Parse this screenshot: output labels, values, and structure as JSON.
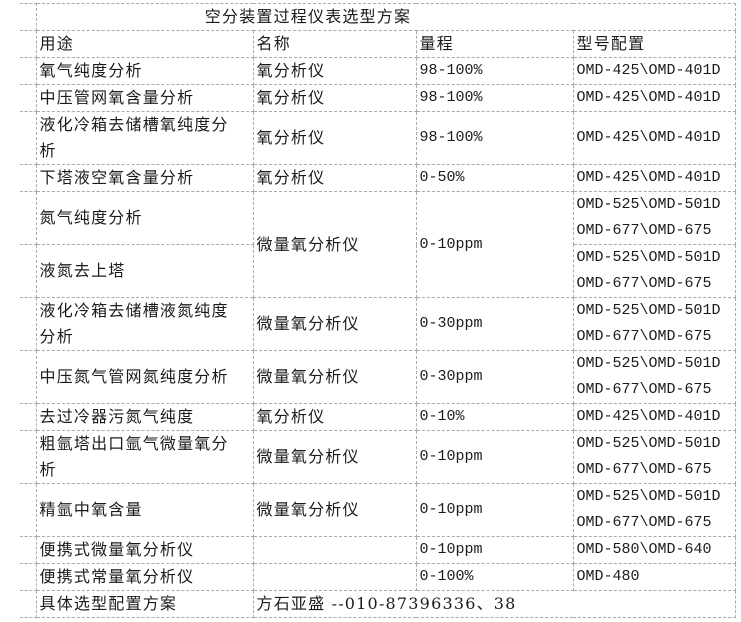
{
  "title": "空分装置过程仪表选型方案",
  "columns": [
    "用途",
    "名称",
    "量程",
    "型号配置"
  ],
  "rows": [
    {
      "tall": false,
      "cells": [
        {
          "lines": [
            "氧气纯度分析"
          ]
        },
        {
          "lines": [
            "氧分析仪"
          ]
        },
        {
          "lines": [
            "98-100%"
          ]
        },
        {
          "lines": [
            "OMD-425\\OMD-401D"
          ]
        }
      ]
    },
    {
      "tall": false,
      "cells": [
        {
          "lines": [
            "中压管网氧含量分析"
          ]
        },
        {
          "lines": [
            "氧分析仪"
          ]
        },
        {
          "lines": [
            "98-100%"
          ]
        },
        {
          "lines": [
            "OMD-425\\OMD-401D"
          ]
        }
      ]
    },
    {
      "tall": true,
      "cells": [
        {
          "lines": [
            "液化冷箱去储槽氧纯度分",
            "析"
          ]
        },
        {
          "lines": [
            "氧分析仪"
          ]
        },
        {
          "lines": [
            "98-100%"
          ]
        },
        {
          "lines": [
            "OMD-425\\OMD-401D"
          ]
        }
      ]
    },
    {
      "tall": false,
      "cells": [
        {
          "lines": [
            "下塔液空氧含量分析"
          ]
        },
        {
          "lines": [
            "氧分析仪"
          ]
        },
        {
          "lines": [
            "0-50%"
          ]
        },
        {
          "lines": [
            "OMD-425\\OMD-401D"
          ]
        }
      ]
    },
    {
      "tall": true,
      "cells": [
        {
          "lines": [
            "氮气纯度分析"
          ]
        },
        {
          "lines": [
            "微量氧分析仪"
          ],
          "rowspan": 2
        },
        {
          "lines": [
            "0-10ppm"
          ],
          "rowspan": 2
        },
        {
          "lines": [
            "OMD-525\\OMD-501D",
            "OMD-677\\OMD-675"
          ]
        }
      ]
    },
    {
      "tall": true,
      "cells": [
        {
          "lines": [
            "液氮去上塔"
          ]
        },
        {
          "lines": [
            "OMD-525\\OMD-501D",
            "OMD-677\\OMD-675"
          ]
        }
      ]
    },
    {
      "tall": true,
      "cells": [
        {
          "lines": [
            "液化冷箱去储槽液氮纯度",
            "分析"
          ]
        },
        {
          "lines": [
            "微量氧分析仪"
          ]
        },
        {
          "lines": [
            "0-30ppm"
          ]
        },
        {
          "lines": [
            "OMD-525\\OMD-501D",
            "OMD-677\\OMD-675"
          ]
        }
      ]
    },
    {
      "tall": true,
      "cells": [
        {
          "lines": [
            "中压氮气管网氮纯度分析"
          ]
        },
        {
          "lines": [
            "微量氧分析仪"
          ]
        },
        {
          "lines": [
            "0-30ppm"
          ]
        },
        {
          "lines": [
            "OMD-525\\OMD-501D",
            "OMD-677\\OMD-675"
          ]
        }
      ]
    },
    {
      "tall": false,
      "cells": [
        {
          "lines": [
            "去过冷器污氮气纯度"
          ]
        },
        {
          "lines": [
            "氧分析仪"
          ]
        },
        {
          "lines": [
            "0-10%"
          ]
        },
        {
          "lines": [
            "OMD-425\\OMD-401D"
          ]
        }
      ]
    },
    {
      "tall": true,
      "cells": [
        {
          "lines": [
            "粗氩塔出口氩气微量氧分",
            "析"
          ]
        },
        {
          "lines": [
            "微量氧分析仪"
          ]
        },
        {
          "lines": [
            "0-10ppm"
          ]
        },
        {
          "lines": [
            "OMD-525\\OMD-501D",
            "OMD-677\\OMD-675"
          ]
        }
      ]
    },
    {
      "tall": true,
      "cells": [
        {
          "lines": [
            "精氩中氧含量"
          ]
        },
        {
          "lines": [
            "微量氧分析仪"
          ]
        },
        {
          "lines": [
            "0-10ppm"
          ]
        },
        {
          "lines": [
            "OMD-525\\OMD-501D",
            "OMD-677\\OMD-675"
          ]
        }
      ]
    },
    {
      "tall": false,
      "cells": [
        {
          "lines": [
            "便携式微量氧分析仪"
          ]
        },
        {
          "lines": []
        },
        {
          "lines": [
            "0-10ppm"
          ]
        },
        {
          "lines": [
            "OMD-580\\OMD-640"
          ]
        }
      ]
    },
    {
      "tall": false,
      "cells": [
        {
          "lines": [
            "便携式常量氧分析仪"
          ]
        },
        {
          "lines": []
        },
        {
          "lines": [
            "0-100%"
          ]
        },
        {
          "lines": [
            "OMD-480"
          ]
        }
      ]
    },
    {
      "tall": false,
      "cells": [
        {
          "lines": [
            "具体选型配置方案"
          ]
        },
        {
          "lines": [
            "方石亚盛 --010-87396336、38"
          ],
          "colspan": 3
        }
      ]
    }
  ],
  "colors": {
    "grid": "#aaaaaa",
    "text": "#1b1b1b",
    "background": "#ffffff"
  }
}
